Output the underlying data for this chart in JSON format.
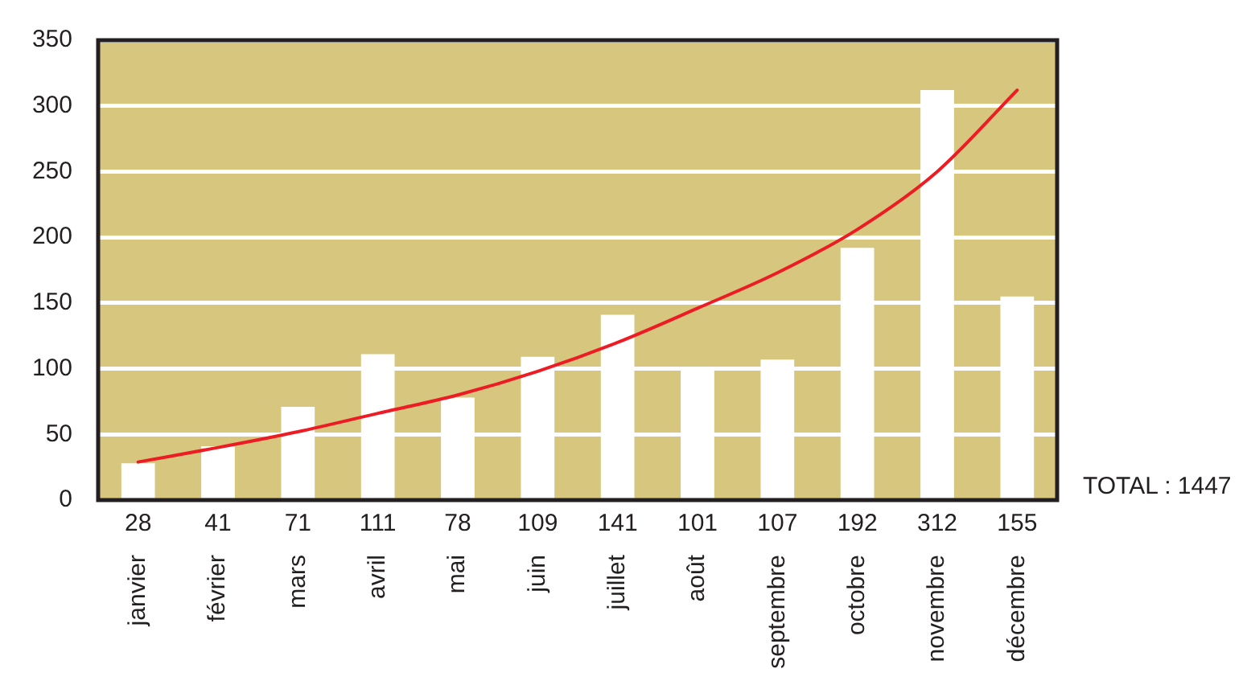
{
  "chart_data": {
    "type": "bar",
    "categories": [
      "janvier",
      "février",
      "mars",
      "avril",
      "mai",
      "juin",
      "juillet",
      "août",
      "septembre",
      "octobre",
      "novembre",
      "décembre"
    ],
    "series": [
      {
        "color": "#ffffff",
        "values": [
          28,
          41,
          71,
          111,
          78,
          109,
          141,
          101,
          107,
          192,
          312,
          155
        ],
        "value_labels": [
          "28",
          "41",
          "71",
          "111",
          "78",
          "109",
          "141",
          "101",
          "107",
          "192",
          "312",
          "155"
        ]
      },
      {
        "type": "line",
        "color": "#ed1c24",
        "x": [
          "janvier",
          "février",
          "mars",
          "avril",
          "mai",
          "juin",
          "juillet",
          "août",
          "septembre",
          "octobre",
          "novembre",
          "décembre"
        ],
        "values": [
          29,
          40,
          52,
          66,
          80,
          98,
          120,
          146,
          173,
          206,
          250,
          312
        ]
      }
    ],
    "ylim": [
      0,
      350
    ],
    "yticks": [
      0,
      50,
      100,
      150,
      200,
      250,
      300,
      350
    ],
    "grid": "y",
    "legend": false,
    "marker": "none",
    "line_style": "solid",
    "annotations": [
      "TOTAL : 1447"
    ]
  }
}
